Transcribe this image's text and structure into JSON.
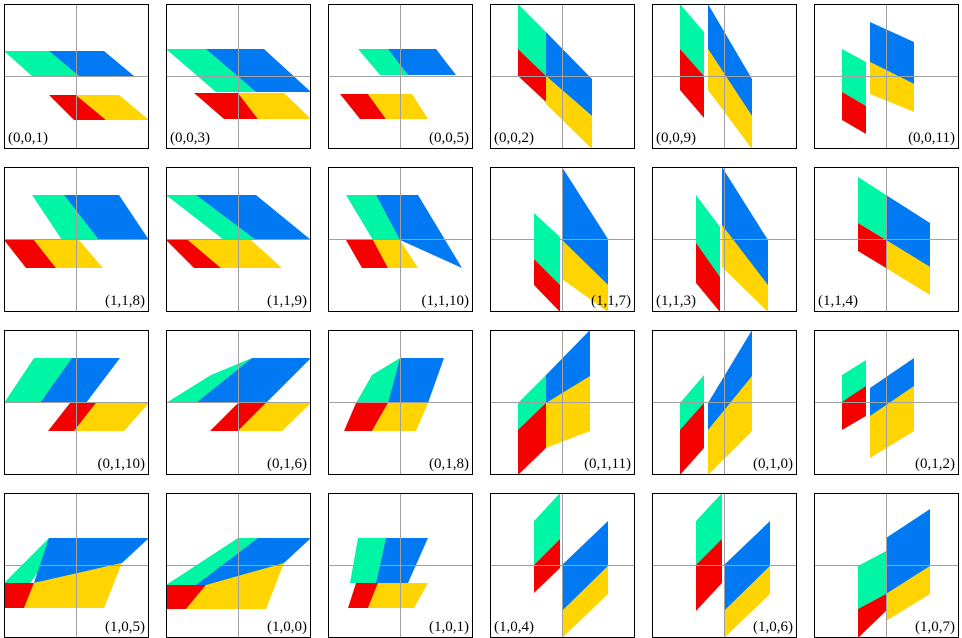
{
  "colors": {
    "green": "#00F5A5",
    "blue": "#0079F2",
    "red": "#F50000",
    "yellow": "#FFD400",
    "frame": "#000000",
    "axis": "#a0a0a0"
  },
  "panels": [
    {
      "label": "(0,0,1)",
      "label_side": "left",
      "shape": "h-flat"
    },
    {
      "label": "(0,0,3)",
      "label_side": "left",
      "shape": "h-long"
    },
    {
      "label": "(0,0,5)",
      "label_side": "right",
      "shape": "h-short"
    },
    {
      "label": "(0,0,2)",
      "label_side": "left",
      "shape": "v-flat"
    },
    {
      "label": "(0,0,9)",
      "label_side": "left",
      "shape": "v-split"
    },
    {
      "label": "(0,0,11)",
      "label_side": "right",
      "shape": "v-split-short"
    },
    {
      "label": "(1,1,8)",
      "label_side": "right",
      "shape": "h-flat-b"
    },
    {
      "label": "(1,1,9)",
      "label_side": "right",
      "shape": "h-long-b"
    },
    {
      "label": "(1,1,10)",
      "label_side": "right",
      "shape": "h-short-b"
    },
    {
      "label": "(1,1,7)",
      "label_side": "right",
      "shape": "v-split-b"
    },
    {
      "label": "(1,1,3)",
      "label_side": "left",
      "shape": "v-split-long-b"
    },
    {
      "label": "(1,1,4)",
      "label_side": "left",
      "shape": "v-flat-b"
    },
    {
      "label": "(0,1,10)",
      "label_side": "right",
      "shape": "h-up"
    },
    {
      "label": "(0,1,6)",
      "label_side": "right",
      "shape": "h-up-long"
    },
    {
      "label": "(0,1,8)",
      "label_side": "right",
      "shape": "h-up-short"
    },
    {
      "label": "(0,1,11)",
      "label_side": "right",
      "shape": "v-up"
    },
    {
      "label": "(0,1,0)",
      "label_side": "right",
      "shape": "v-up-split"
    },
    {
      "label": "(0,1,2)",
      "label_side": "right",
      "shape": "v-up-split-short"
    },
    {
      "label": "(1,0,5)",
      "label_side": "right",
      "shape": "h-up-b"
    },
    {
      "label": "(1,0,0)",
      "label_side": "right",
      "shape": "h-up-long-b"
    },
    {
      "label": "(1,0,1)",
      "label_side": "right",
      "shape": "h-up-short-b"
    },
    {
      "label": "(1,0,4)",
      "label_side": "left",
      "shape": "v-up-split-b"
    },
    {
      "label": "(1,0,6)",
      "label_side": "right",
      "shape": "v-up-split-long-b"
    },
    {
      "label": "(1,0,7)",
      "label_side": "right",
      "shape": "v-up-flat-b"
    }
  ]
}
